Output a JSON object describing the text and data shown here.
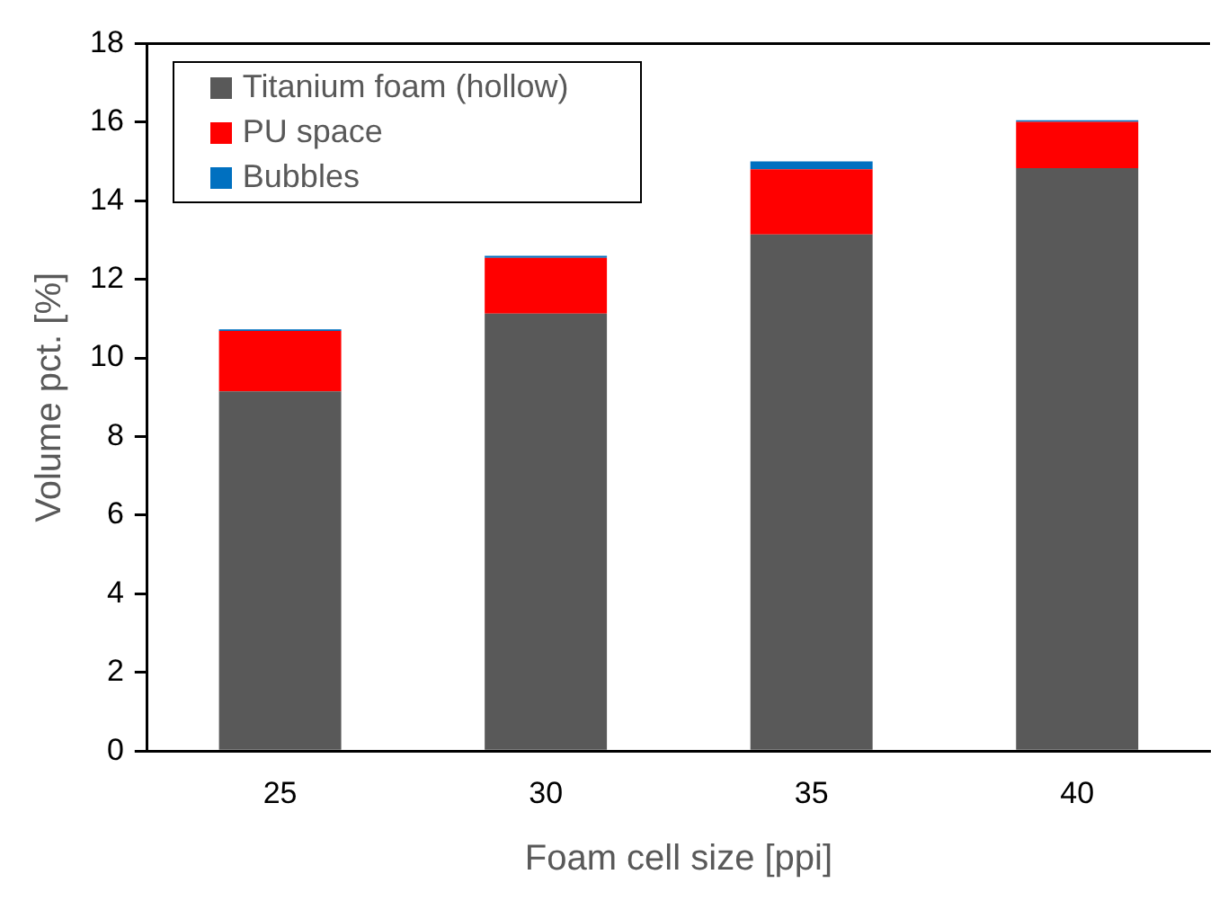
{
  "chart_data": {
    "type": "bar",
    "stacked": true,
    "xlabel": "Foam cell size [ppi]",
    "ylabel": "Volume pct. [%]",
    "categories": [
      "25",
      "30",
      "35",
      "40"
    ],
    "series": [
      {
        "name": "Titanium foam (hollow)",
        "color": "#595959",
        "values": [
          9.15,
          11.13,
          13.14,
          14.83
        ]
      },
      {
        "name": "PU space",
        "color": "#ff0000",
        "values": [
          1.54,
          1.42,
          1.66,
          1.18
        ]
      },
      {
        "name": "Bubbles",
        "color": "#0070c0",
        "values": [
          0.04,
          0.05,
          0.2,
          0.04
        ]
      }
    ],
    "ylim": [
      0,
      18
    ],
    "yticks": [
      0,
      2,
      4,
      6,
      8,
      10,
      12,
      14,
      16,
      18
    ],
    "grid": false,
    "legend": "top left"
  }
}
